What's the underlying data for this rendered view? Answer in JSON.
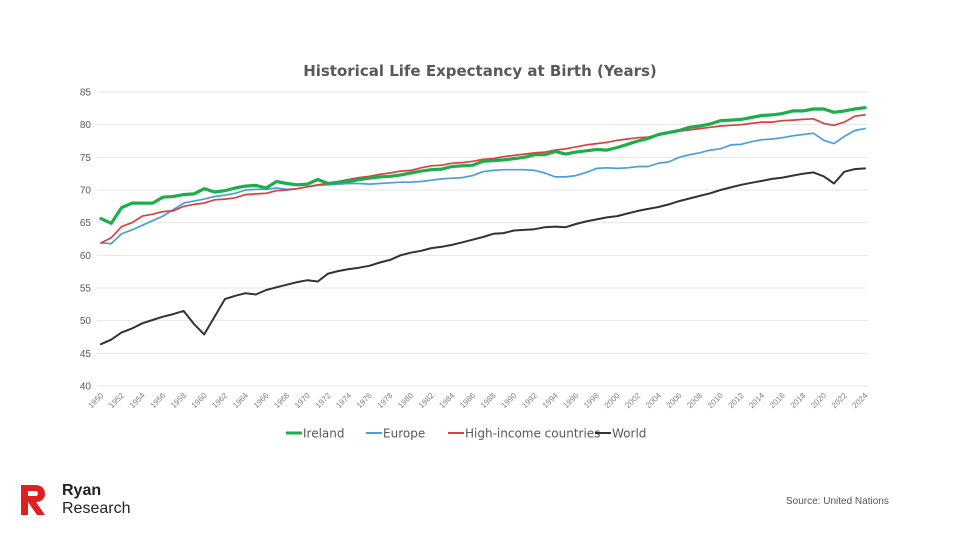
{
  "chart_data": {
    "type": "line",
    "title": "Historical Life Expectancy at Birth (Years)",
    "xlabel": "",
    "ylabel": "",
    "ylim": [
      40,
      85
    ],
    "yticks": [
      40,
      45,
      50,
      55,
      60,
      65,
      70,
      75,
      80,
      85
    ],
    "xlim": [
      1950,
      2024
    ],
    "xticks": [
      1950,
      1952,
      1954,
      1956,
      1958,
      1960,
      1962,
      1964,
      1966,
      1968,
      1970,
      1972,
      1974,
      1976,
      1978,
      1980,
      1982,
      1984,
      1986,
      1988,
      1990,
      1992,
      1994,
      1996,
      1998,
      2000,
      2002,
      2004,
      2006,
      2008,
      2010,
      2012,
      2014,
      2016,
      2018,
      2020,
      2022,
      2024
    ],
    "grid": true,
    "legend_position": "bottom",
    "x": [
      1950,
      1951,
      1952,
      1953,
      1954,
      1955,
      1956,
      1957,
      1958,
      1959,
      1960,
      1961,
      1962,
      1963,
      1964,
      1965,
      1966,
      1967,
      1968,
      1969,
      1970,
      1971,
      1972,
      1973,
      1974,
      1975,
      1976,
      1977,
      1978,
      1979,
      1980,
      1981,
      1982,
      1983,
      1984,
      1985,
      1986,
      1987,
      1988,
      1989,
      1990,
      1991,
      1992,
      1993,
      1994,
      1995,
      1996,
      1997,
      1998,
      1999,
      2000,
      2001,
      2002,
      2003,
      2004,
      2005,
      2006,
      2007,
      2008,
      2009,
      2010,
      2011,
      2012,
      2013,
      2014,
      2015,
      2016,
      2017,
      2018,
      2019,
      2020,
      2021,
      2022,
      2023,
      2024
    ],
    "series": [
      {
        "name": "Ireland",
        "color": "#1fad4b",
        "values": [
          65.6,
          64.9,
          67.3,
          68.0,
          68.0,
          68.0,
          68.9,
          69.0,
          69.3,
          69.4,
          70.2,
          69.7,
          69.9,
          70.3,
          70.6,
          70.7,
          70.3,
          71.3,
          71.0,
          70.8,
          70.9,
          71.6,
          71.0,
          71.2,
          71.3,
          71.6,
          71.8,
          72.0,
          72.1,
          72.3,
          72.6,
          72.9,
          73.1,
          73.2,
          73.6,
          73.7,
          73.8,
          74.4,
          74.5,
          74.6,
          74.8,
          75.0,
          75.4,
          75.4,
          75.9,
          75.5,
          75.8,
          76.0,
          76.2,
          76.1,
          76.5,
          77.0,
          77.5,
          77.9,
          78.5,
          78.8,
          79.1,
          79.6,
          79.8,
          80.1,
          80.6,
          80.7,
          80.8,
          81.1,
          81.4,
          81.5,
          81.7,
          82.1,
          82.1,
          82.4,
          82.4,
          81.9,
          82.1,
          82.4,
          82.6
        ]
      },
      {
        "name": "Europe",
        "color": "#4a9ee0",
        "values": [
          61.9,
          61.8,
          63.3,
          63.9,
          64.6,
          65.3,
          66.0,
          67.0,
          68.0,
          68.3,
          68.6,
          69.0,
          69.2,
          69.5,
          70.0,
          70.1,
          70.1,
          70.3,
          70.1,
          70.2,
          70.5,
          70.7,
          70.8,
          70.9,
          71.0,
          71.0,
          70.9,
          71.0,
          71.1,
          71.2,
          71.2,
          71.3,
          71.5,
          71.7,
          71.8,
          71.9,
          72.2,
          72.8,
          73.0,
          73.1,
          73.1,
          73.1,
          73.0,
          72.6,
          72.0,
          72.0,
          72.2,
          72.7,
          73.3,
          73.4,
          73.3,
          73.4,
          73.6,
          73.6,
          74.1,
          74.3,
          75.0,
          75.4,
          75.7,
          76.1,
          76.3,
          76.9,
          77.0,
          77.4,
          77.7,
          77.8,
          78.0,
          78.3,
          78.5,
          78.7,
          77.6,
          77.1,
          78.2,
          79.1,
          79.4
        ]
      },
      {
        "name": "High-income countries",
        "color": "#d94040",
        "values": [
          61.9,
          62.7,
          64.4,
          65.0,
          66.0,
          66.3,
          66.7,
          66.8,
          67.5,
          67.8,
          68.0,
          68.5,
          68.6,
          68.8,
          69.3,
          69.4,
          69.5,
          69.9,
          70.0,
          70.2,
          70.5,
          70.8,
          71.0,
          71.3,
          71.6,
          71.9,
          72.1,
          72.4,
          72.6,
          72.9,
          73.0,
          73.4,
          73.7,
          73.8,
          74.1,
          74.2,
          74.4,
          74.7,
          74.8,
          75.1,
          75.3,
          75.5,
          75.7,
          75.8,
          76.1,
          76.3,
          76.6,
          76.9,
          77.1,
          77.3,
          77.6,
          77.8,
          78.0,
          78.1,
          78.5,
          78.7,
          79.0,
          79.2,
          79.4,
          79.6,
          79.8,
          79.9,
          80.0,
          80.2,
          80.4,
          80.4,
          80.6,
          80.7,
          80.8,
          80.9,
          80.2,
          79.9,
          80.4,
          81.3,
          81.5
        ]
      },
      {
        "name": "World",
        "color": "#333333",
        "values": [
          46.4,
          47.1,
          48.2,
          48.8,
          49.6,
          50.1,
          50.6,
          51.0,
          51.5,
          49.5,
          47.9,
          50.6,
          53.3,
          53.8,
          54.2,
          54.0,
          54.7,
          55.1,
          55.5,
          55.9,
          56.2,
          56.0,
          57.2,
          57.6,
          57.9,
          58.1,
          58.4,
          58.9,
          59.3,
          60.0,
          60.4,
          60.7,
          61.1,
          61.3,
          61.6,
          62.0,
          62.4,
          62.8,
          63.3,
          63.4,
          63.8,
          63.9,
          64.0,
          64.3,
          64.4,
          64.3,
          64.8,
          65.2,
          65.5,
          65.8,
          66.0,
          66.4,
          66.8,
          67.1,
          67.4,
          67.8,
          68.3,
          68.7,
          69.1,
          69.5,
          70.0,
          70.4,
          70.8,
          71.1,
          71.4,
          71.7,
          71.9,
          72.2,
          72.5,
          72.7,
          72.1,
          71.0,
          72.8,
          73.2,
          73.3
        ]
      }
    ]
  },
  "branding": {
    "name_line1": "Ryan",
    "name_line2": "Research",
    "logo_color": "#e02020",
    "logo_icon": "r-logo-icon"
  },
  "source": "Source: United Nations"
}
